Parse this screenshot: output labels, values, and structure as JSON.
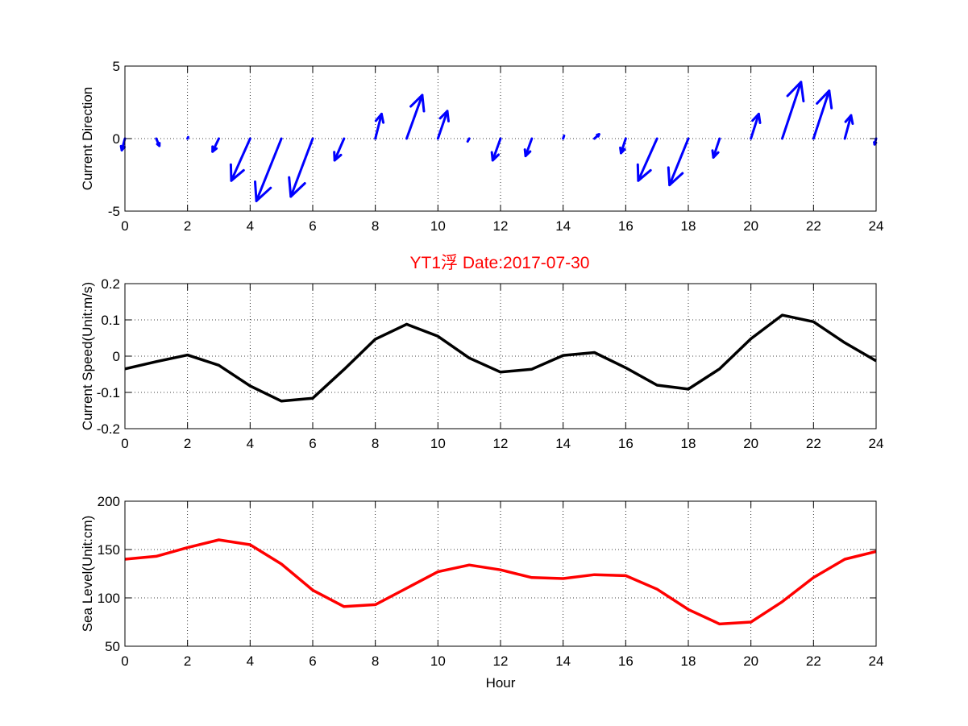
{
  "title": "YT1浮    Date:2017-07-30",
  "colors": {
    "direction": "#0000ff",
    "speed": "#000000",
    "level": "#ff0000",
    "title": "#ff0000"
  },
  "chart_data": [
    {
      "type": "quiver",
      "ylabel": "Current Direction",
      "xlabel": "",
      "xlim": [
        0,
        24
      ],
      "ylim": [
        -5,
        5
      ],
      "xticks": [
        0,
        2,
        4,
        6,
        8,
        10,
        12,
        14,
        16,
        18,
        20,
        22,
        24
      ],
      "yticks": [
        -5,
        0,
        5
      ],
      "grid": true,
      "x": [
        0,
        1,
        2,
        3,
        4,
        5,
        6,
        7,
        8,
        9,
        10,
        11,
        12,
        13,
        14,
        15,
        16,
        17,
        18,
        19,
        20,
        21,
        22,
        23,
        24
      ],
      "u": [
        -0.1,
        0.1,
        0.02,
        -0.2,
        -0.6,
        -0.8,
        -0.7,
        -0.3,
        0.2,
        0.5,
        0.3,
        -0.05,
        -0.25,
        -0.2,
        0.03,
        0.15,
        -0.15,
        -0.6,
        -0.6,
        -0.2,
        0.25,
        0.6,
        0.5,
        0.2,
        -0.05
      ],
      "v": [
        -0.8,
        -0.5,
        0.1,
        -0.9,
        -2.9,
        -4.3,
        -4.0,
        -1.5,
        1.7,
        3.0,
        1.9,
        -0.2,
        -1.5,
        -1.2,
        0.2,
        0.3,
        -1.0,
        -2.9,
        -3.2,
        -1.3,
        1.7,
        3.9,
        3.3,
        1.6,
        -0.4
      ]
    },
    {
      "type": "line",
      "ylabel": "Current Speed(Unit:m/s)",
      "xlabel": "",
      "xlim": [
        0,
        24
      ],
      "ylim": [
        -0.2,
        0.2
      ],
      "xticks": [
        0,
        2,
        4,
        6,
        8,
        10,
        12,
        14,
        16,
        18,
        20,
        22,
        24
      ],
      "yticks": [
        -0.2,
        -0.1,
        0,
        0.1,
        0.2
      ],
      "grid": true,
      "x": [
        0,
        1,
        2,
        3,
        4,
        5,
        6,
        7,
        8,
        9,
        10,
        11,
        12,
        13,
        14,
        15,
        16,
        17,
        18,
        19,
        20,
        21,
        22,
        23,
        24
      ],
      "y": [
        -0.035,
        -0.015,
        0.003,
        -0.025,
        -0.082,
        -0.124,
        -0.116,
        -0.037,
        0.047,
        0.088,
        0.055,
        -0.005,
        -0.044,
        -0.036,
        0.002,
        0.01,
        -0.032,
        -0.08,
        -0.091,
        -0.035,
        0.048,
        0.113,
        0.095,
        0.037,
        -0.013
      ]
    },
    {
      "type": "line",
      "ylabel": "Sea Level(Unit:cm)",
      "xlabel": "Hour",
      "xlim": [
        0,
        24
      ],
      "ylim": [
        50,
        200
      ],
      "xticks": [
        0,
        2,
        4,
        6,
        8,
        10,
        12,
        14,
        16,
        18,
        20,
        22,
        24
      ],
      "yticks": [
        50,
        100,
        150,
        200
      ],
      "grid": true,
      "x": [
        0,
        1,
        2,
        3,
        4,
        5,
        6,
        7,
        8,
        9,
        10,
        11,
        12,
        13,
        14,
        15,
        16,
        17,
        18,
        19,
        20,
        21,
        22,
        23,
        24
      ],
      "y": [
        140,
        143,
        152,
        160,
        155,
        135,
        108,
        91,
        93,
        110,
        127,
        134,
        129,
        121,
        120,
        124,
        123,
        109,
        88,
        73,
        75,
        96,
        121,
        140,
        148
      ]
    }
  ]
}
